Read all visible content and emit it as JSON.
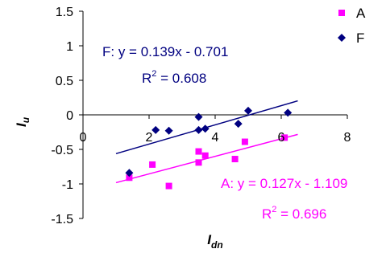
{
  "chart_data": {
    "type": "scatter",
    "xlabel": "I",
    "xlabel_sub": "dn",
    "ylabel": "I",
    "ylabel_sub": "u",
    "xlim": [
      0,
      8
    ],
    "ylim": [
      -1.5,
      1.5
    ],
    "xticks": [
      "0",
      "2",
      "4",
      "6",
      "8"
    ],
    "yticks": [
      "1.5",
      "1",
      "0.5",
      "0",
      "-0.5",
      "-1",
      "-1.5"
    ],
    "grid": false,
    "legend_position": "top-right",
    "series": [
      {
        "name": "A",
        "marker": "square",
        "color": "#FF00FF",
        "points": [
          [
            1.4,
            -0.91
          ],
          [
            2.1,
            -0.72
          ],
          [
            2.6,
            -1.03
          ],
          [
            3.5,
            -0.53
          ],
          [
            3.5,
            -0.69
          ],
          [
            3.7,
            -0.59
          ],
          [
            4.6,
            -0.64
          ],
          [
            4.9,
            -0.39
          ],
          [
            6.1,
            -0.33
          ]
        ],
        "trendline": {
          "slope": 0.127,
          "intercept": -1.109,
          "x_range": [
            1.0,
            6.5
          ],
          "equation": "A: y = 0.127x - 1.109",
          "r2_prefix": "R",
          "r2_exp": "2",
          "r2_value": " = 0.696"
        }
      },
      {
        "name": "F",
        "marker": "diamond",
        "color": "#000080",
        "points": [
          [
            1.4,
            -0.84
          ],
          [
            2.2,
            -0.22
          ],
          [
            2.6,
            -0.23
          ],
          [
            3.5,
            -0.03
          ],
          [
            3.5,
            -0.22
          ],
          [
            3.7,
            -0.2
          ],
          [
            4.7,
            -0.13
          ],
          [
            5.0,
            0.06
          ],
          [
            6.2,
            0.03
          ]
        ],
        "trendline": {
          "slope": 0.139,
          "intercept": -0.701,
          "x_range": [
            1.0,
            6.5
          ],
          "equation": "F: y = 0.139x - 0.701",
          "r2_prefix": "R",
          "r2_exp": "2",
          "r2_value": " = 0.608"
        }
      }
    ]
  }
}
